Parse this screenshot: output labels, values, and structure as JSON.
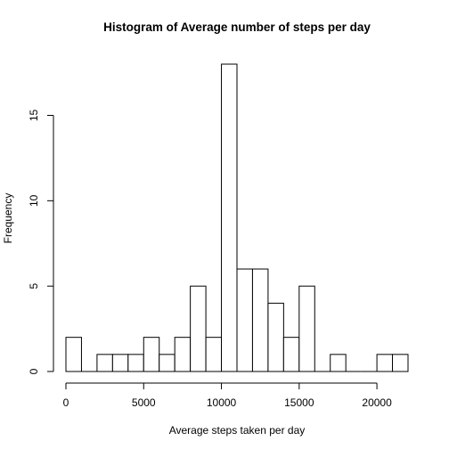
{
  "chart_data": {
    "type": "bar",
    "title": "Histogram of Average number of steps per day",
    "xlabel": "Average steps taken per day",
    "ylabel": "Frequency",
    "xlim": [
      0,
      22000
    ],
    "ylim": [
      0,
      18
    ],
    "x_ticks": [
      "0",
      "5000",
      "10000",
      "15000",
      "20000"
    ],
    "y_ticks": [
      "0",
      "5",
      "10",
      "15"
    ],
    "bin_width": 1000,
    "bins": [
      {
        "start": 0,
        "end": 1000,
        "count": 2
      },
      {
        "start": 1000,
        "end": 2000,
        "count": 0
      },
      {
        "start": 2000,
        "end": 3000,
        "count": 1
      },
      {
        "start": 3000,
        "end": 4000,
        "count": 1
      },
      {
        "start": 4000,
        "end": 5000,
        "count": 1
      },
      {
        "start": 5000,
        "end": 6000,
        "count": 2
      },
      {
        "start": 6000,
        "end": 7000,
        "count": 1
      },
      {
        "start": 7000,
        "end": 8000,
        "count": 2
      },
      {
        "start": 8000,
        "end": 9000,
        "count": 5
      },
      {
        "start": 9000,
        "end": 10000,
        "count": 2
      },
      {
        "start": 10000,
        "end": 11000,
        "count": 18
      },
      {
        "start": 11000,
        "end": 12000,
        "count": 6
      },
      {
        "start": 12000,
        "end": 13000,
        "count": 6
      },
      {
        "start": 13000,
        "end": 14000,
        "count": 4
      },
      {
        "start": 14000,
        "end": 15000,
        "count": 2
      },
      {
        "start": 15000,
        "end": 16000,
        "count": 5
      },
      {
        "start": 16000,
        "end": 17000,
        "count": 0
      },
      {
        "start": 17000,
        "end": 18000,
        "count": 1
      },
      {
        "start": 18000,
        "end": 19000,
        "count": 0
      },
      {
        "start": 19000,
        "end": 20000,
        "count": 0
      },
      {
        "start": 20000,
        "end": 21000,
        "count": 1
      },
      {
        "start": 21000,
        "end": 22000,
        "count": 1
      }
    ],
    "grid": false,
    "legend": "none"
  }
}
